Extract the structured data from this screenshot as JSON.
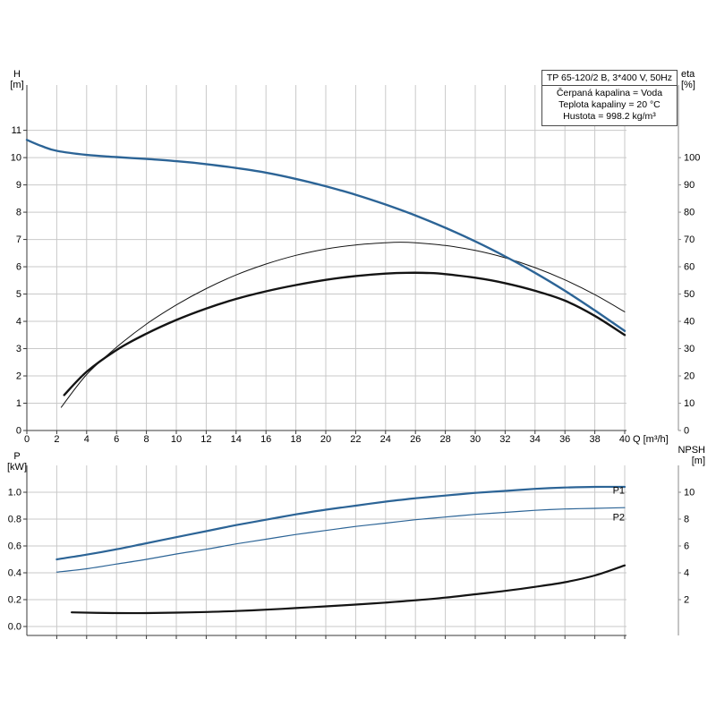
{
  "colors": {
    "curve_blue": "#2c6496",
    "curve_black": "#141414",
    "grid": "#c9c9c9",
    "axis": "#3a3a3a",
    "right_axis": "#8a8a8a",
    "background": "#ffffff"
  },
  "header_labels": {
    "h_top": "H",
    "h_unit": "[m]",
    "eta_top": "eta",
    "eta_unit": "[%]",
    "q_label": "Q [m³/h]",
    "p_top": "P",
    "p_unit": "[kW]",
    "npsh_top": "NPSH",
    "npsh_unit": "[m]"
  },
  "title_box": {
    "model": "TP 65-120/2 B, 3*400 V, 50Hz",
    "lines": [
      "Čerpaná kapalina = Voda",
      "Teplota kapaliny = 20 °C",
      "Hustota = 998.2 kg/m³"
    ]
  },
  "chart_data": [
    {
      "id": "hq",
      "type": "line",
      "title": "TP 65-120/2 B, 3*400 V, 50Hz",
      "x_axis": {
        "label": "Q [m³/h]",
        "min": 0,
        "max": 40.12,
        "grid": true,
        "show_labels": true,
        "ticks": [
          0,
          2,
          4,
          6,
          8,
          10,
          12,
          14,
          16,
          18,
          20,
          22,
          24,
          26,
          28,
          30,
          32,
          34,
          36,
          38,
          40
        ],
        "tick_labels": [
          "0",
          "2",
          "4",
          "6",
          "8",
          "10",
          "12",
          "14",
          "16",
          "18",
          "20",
          "22",
          "24",
          "26",
          "28",
          "30",
          "32",
          "34",
          "36",
          "38",
          "40"
        ]
      },
      "y_axis_left": {
        "label": "H [m]",
        "min": 0,
        "max": 12.66,
        "ticks": [
          0,
          1,
          2,
          3,
          4,
          5,
          6,
          7,
          8,
          9,
          10,
          11
        ],
        "tick_labels": [
          "0",
          "1",
          "2",
          "3",
          "4",
          "5",
          "6",
          "7",
          "8",
          "9",
          "10",
          "11"
        ]
      },
      "y_axis_right": {
        "label": "eta [%]",
        "min": 0,
        "max": 126.6,
        "ticks": [
          0,
          10,
          20,
          30,
          40,
          50,
          60,
          70,
          80,
          90,
          100
        ],
        "tick_labels": [
          "0",
          "10",
          "20",
          "30",
          "40",
          "50",
          "60",
          "70",
          "80",
          "90",
          "100"
        ]
      },
      "series": [
        {
          "name": "eta-pump-curve",
          "axis": "right",
          "color": "#141414",
          "width": 1,
          "points": [
            [
              2.3,
              8.5
            ],
            [
              4,
              20.5
            ],
            [
              6,
              30.5
            ],
            [
              8,
              39
            ],
            [
              10,
              46
            ],
            [
              12,
              52
            ],
            [
              14,
              57
            ],
            [
              16,
              61
            ],
            [
              18,
              64.2
            ],
            [
              20,
              66.5
            ],
            [
              22,
              68
            ],
            [
              24,
              68.8
            ],
            [
              25,
              69
            ],
            [
              26,
              68.8
            ],
            [
              28,
              67.8
            ],
            [
              30,
              66
            ],
            [
              32,
              63.3
            ],
            [
              34,
              59.7
            ],
            [
              36,
              55.2
            ],
            [
              38,
              49.8
            ],
            [
              40,
              43.5
            ]
          ]
        },
        {
          "name": "eta-total-curve",
          "axis": "right",
          "color": "#141414",
          "width": 2.4,
          "points": [
            [
              2.5,
              13
            ],
            [
              4,
              21.5
            ],
            [
              6,
              29.5
            ],
            [
              8,
              35.5
            ],
            [
              10,
              40.5
            ],
            [
              12,
              44.7
            ],
            [
              14,
              48.2
            ],
            [
              16,
              51
            ],
            [
              18,
              53.3
            ],
            [
              20,
              55.2
            ],
            [
              22,
              56.6
            ],
            [
              24,
              57.5
            ],
            [
              25.5,
              57.8
            ],
            [
              27,
              57.7
            ],
            [
              28,
              57.3
            ],
            [
              30,
              56
            ],
            [
              32,
              54
            ],
            [
              34,
              51.2
            ],
            [
              36,
              47.6
            ],
            [
              38,
              42
            ],
            [
              40,
              35
            ]
          ]
        },
        {
          "name": "head-curve",
          "axis": "left",
          "color": "#2c6496",
          "width": 2.4,
          "points": [
            [
              0,
              10.65
            ],
            [
              1,
              10.42
            ],
            [
              2,
              10.25
            ],
            [
              4,
              10.1
            ],
            [
              6,
              10.02
            ],
            [
              8,
              9.95
            ],
            [
              10,
              9.87
            ],
            [
              12,
              9.76
            ],
            [
              14,
              9.62
            ],
            [
              16,
              9.45
            ],
            [
              18,
              9.22
            ],
            [
              20,
              8.95
            ],
            [
              22,
              8.64
            ],
            [
              24,
              8.28
            ],
            [
              26,
              7.88
            ],
            [
              28,
              7.43
            ],
            [
              30,
              6.93
            ],
            [
              32,
              6.38
            ],
            [
              34,
              5.78
            ],
            [
              36,
              5.12
            ],
            [
              38,
              4.4
            ],
            [
              40,
              3.65
            ]
          ]
        }
      ]
    },
    {
      "id": "pn",
      "type": "line",
      "x_axis": {
        "min": 0,
        "max": 40.12,
        "grid": true,
        "show_labels": false,
        "ticks": [
          2,
          4,
          6,
          8,
          10,
          12,
          14,
          16,
          18,
          20,
          22,
          24,
          26,
          28,
          30,
          32,
          34,
          36,
          38,
          40
        ],
        "tick_labels": []
      },
      "y_axis_left": {
        "label": "P [kW]",
        "min": -0.0667,
        "max": 1.2,
        "ticks": [
          0,
          0.2,
          0.4,
          0.6,
          0.8,
          1.0
        ],
        "tick_labels": [
          "0.0",
          "0.2",
          "0.4",
          "0.6",
          "0.8",
          "1.0"
        ]
      },
      "y_axis_right": {
        "label": "NPSH [m]",
        "min": -0.667,
        "max": 12,
        "ticks": [
          2,
          4,
          6,
          8,
          10
        ],
        "tick_labels": [
          "2",
          "4",
          "6",
          "8",
          "10"
        ]
      },
      "series": [
        {
          "name": "npsh-curve",
          "axis": "right",
          "color": "#141414",
          "width": 2.2,
          "points": [
            [
              3,
              1.05
            ],
            [
              6,
              1.0
            ],
            [
              8,
              1.0
            ],
            [
              10,
              1.03
            ],
            [
              12,
              1.08
            ],
            [
              14,
              1.15
            ],
            [
              16,
              1.25
            ],
            [
              18,
              1.37
            ],
            [
              20,
              1.5
            ],
            [
              22,
              1.63
            ],
            [
              24,
              1.78
            ],
            [
              26,
              1.95
            ],
            [
              28,
              2.15
            ],
            [
              30,
              2.4
            ],
            [
              32,
              2.65
            ],
            [
              34,
              2.95
            ],
            [
              36,
              3.3
            ],
            [
              38,
              3.8
            ],
            [
              40,
              4.55
            ]
          ]
        },
        {
          "name": "p2-curve",
          "label": "P2",
          "label_pos": [
            39.6,
            0.813
          ],
          "axis": "left",
          "color": "#2c6496",
          "width": 1.2,
          "points": [
            [
              2,
              0.405
            ],
            [
              4,
              0.43
            ],
            [
              6,
              0.465
            ],
            [
              8,
              0.5
            ],
            [
              10,
              0.54
            ],
            [
              12,
              0.575
            ],
            [
              14,
              0.615
            ],
            [
              16,
              0.65
            ],
            [
              18,
              0.685
            ],
            [
              20,
              0.715
            ],
            [
              22,
              0.745
            ],
            [
              24,
              0.77
            ],
            [
              26,
              0.795
            ],
            [
              28,
              0.815
            ],
            [
              30,
              0.835
            ],
            [
              32,
              0.85
            ],
            [
              34,
              0.865
            ],
            [
              36,
              0.875
            ],
            [
              38,
              0.88
            ],
            [
              40,
              0.885
            ]
          ]
        },
        {
          "name": "p1-curve",
          "label": "P1",
          "label_pos": [
            39.6,
            1.012
          ],
          "axis": "left",
          "color": "#2c6496",
          "width": 2.2,
          "points": [
            [
              2,
              0.5
            ],
            [
              4,
              0.535
            ],
            [
              6,
              0.575
            ],
            [
              8,
              0.62
            ],
            [
              10,
              0.665
            ],
            [
              12,
              0.71
            ],
            [
              14,
              0.755
            ],
            [
              16,
              0.795
            ],
            [
              18,
              0.835
            ],
            [
              20,
              0.87
            ],
            [
              22,
              0.9
            ],
            [
              24,
              0.93
            ],
            [
              26,
              0.955
            ],
            [
              28,
              0.975
            ],
            [
              30,
              0.995
            ],
            [
              32,
              1.01
            ],
            [
              34,
              1.025
            ],
            [
              36,
              1.035
            ],
            [
              38,
              1.04
            ],
            [
              40,
              1.04
            ]
          ]
        }
      ]
    }
  ]
}
